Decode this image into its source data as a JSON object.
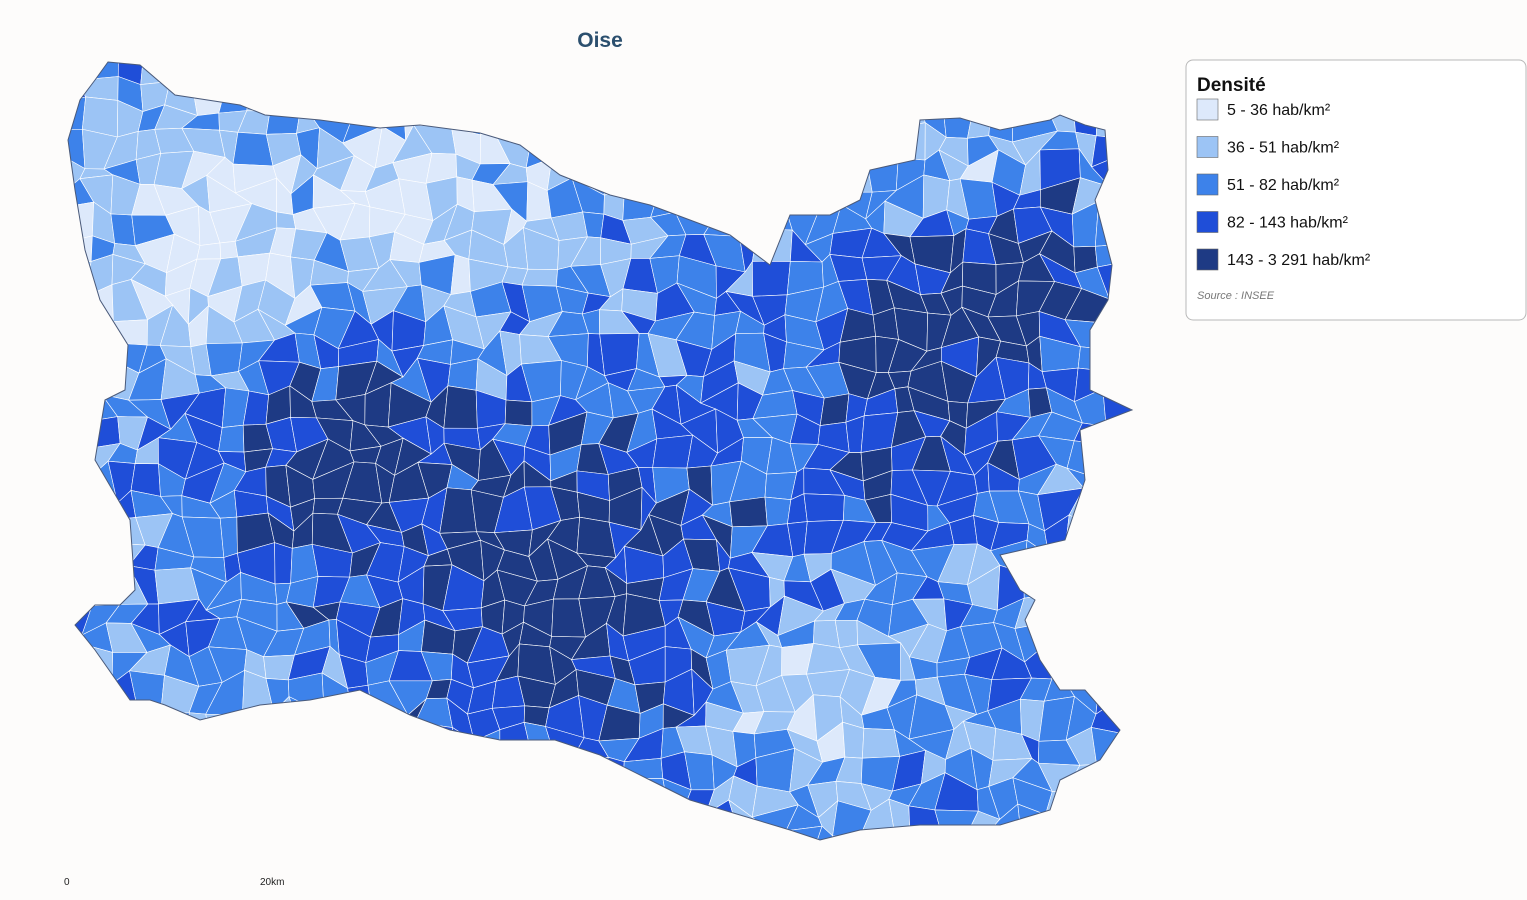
{
  "title": "Oise",
  "legend": {
    "title": "Densité",
    "items": [
      {
        "label": "5 - 36 hab/km²",
        "color": "#dde9fb"
      },
      {
        "label": "36 - 51 hab/km²",
        "color": "#9cc4f5"
      },
      {
        "label": "51 - 82 hab/km²",
        "color": "#3d82ea"
      },
      {
        "label": "82 - 143 hab/km²",
        "color": "#1f4ed8"
      },
      {
        "label": "143 - 3 291 hab/km²",
        "color": "#1e3a84"
      }
    ],
    "source": "Source : INSEE"
  },
  "scale": {
    "start": "0",
    "end": "20km"
  }
}
